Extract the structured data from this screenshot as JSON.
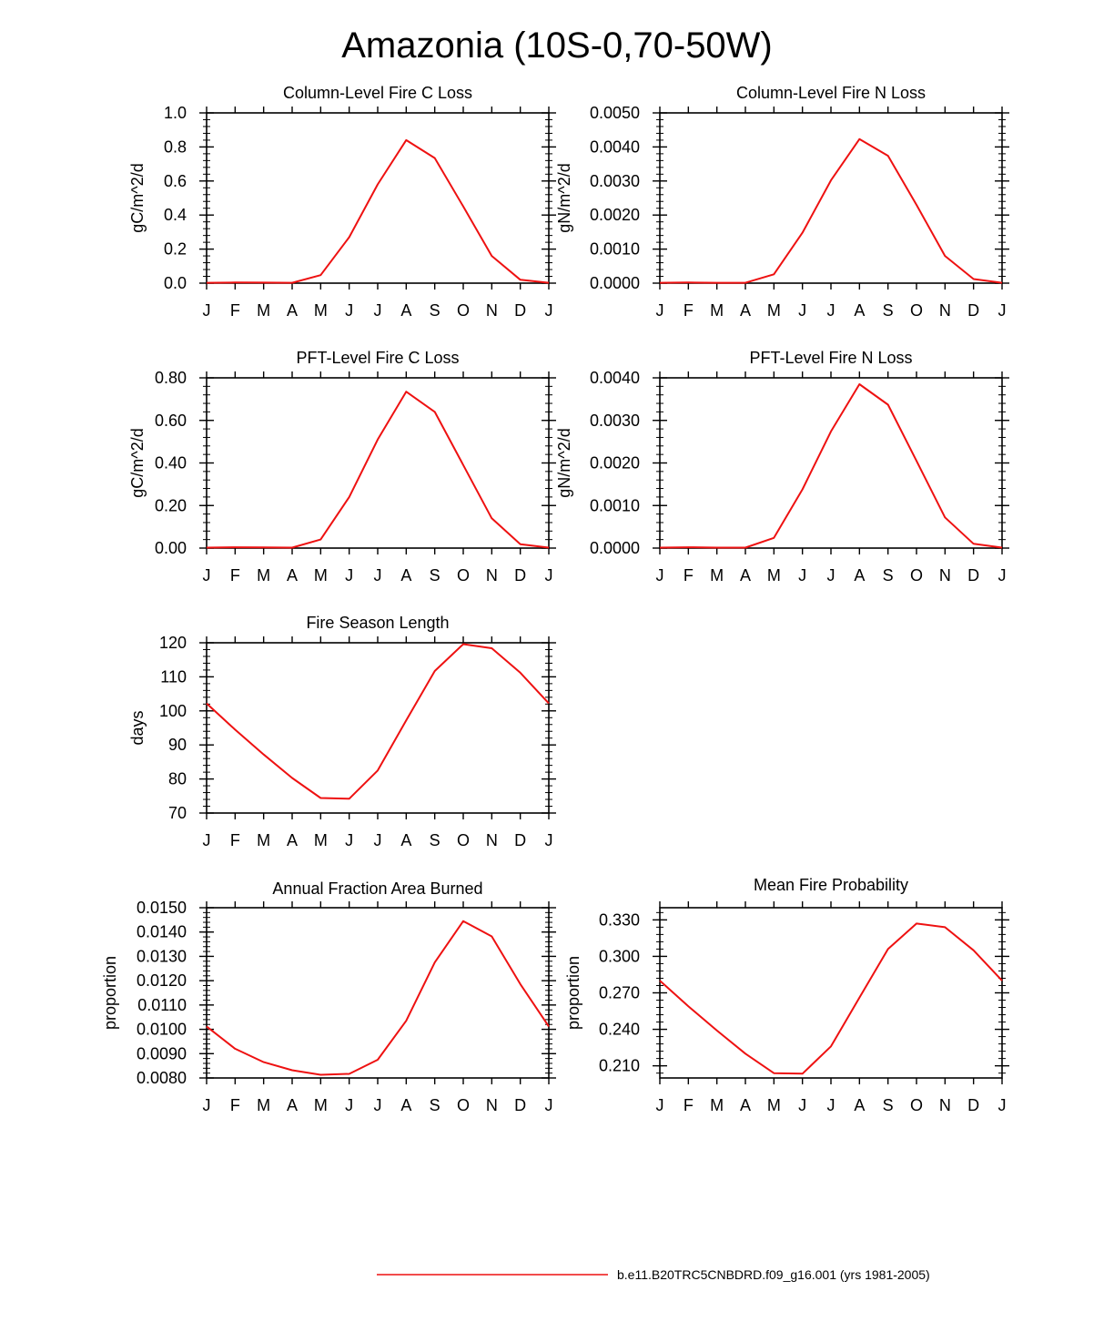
{
  "figure": {
    "title": "Amazonia (10S-0,70-50W)",
    "line_color": "#ee1111",
    "months": [
      "J",
      "F",
      "M",
      "A",
      "M",
      "J",
      "J",
      "A",
      "S",
      "O",
      "N",
      "D",
      "J"
    ],
    "legend": {
      "label": "b.e11.B20TRC5CNBDRD.f09_g16.001 (yrs 1981-2005)"
    }
  },
  "chart_data": [
    {
      "type": "line",
      "title": "Column-Level Fire C Loss",
      "ylabel": "gC/m^2/d",
      "ylim": [
        0,
        1.0
      ],
      "yticks": [
        "0.0",
        "0.2",
        "0.4",
        "0.6",
        "0.8",
        "1.0"
      ],
      "categories": [
        "J",
        "F",
        "M",
        "A",
        "M",
        "J",
        "J",
        "A",
        "S",
        "O",
        "N",
        "D",
        "J"
      ],
      "values": [
        0.002,
        0.004,
        0.003,
        0.002,
        0.047,
        0.27,
        0.58,
        0.84,
        0.735,
        0.45,
        0.16,
        0.02,
        0.002
      ]
    },
    {
      "type": "line",
      "title": "Column-Level Fire N Loss",
      "ylabel": "gN/m^2/d",
      "ylim": [
        0,
        0.005
      ],
      "yticks": [
        "0.0000",
        "0.0010",
        "0.0020",
        "0.0030",
        "0.0040",
        "0.0050"
      ],
      "categories": [
        "J",
        "F",
        "M",
        "A",
        "M",
        "J",
        "J",
        "A",
        "S",
        "O",
        "N",
        "D",
        "J"
      ],
      "values": [
        1e-05,
        2e-05,
        1e-05,
        1e-05,
        0.00026,
        0.00148,
        0.00302,
        0.00423,
        0.00374,
        0.0023,
        0.0008,
        0.00012,
        1e-05
      ]
    },
    {
      "type": "line",
      "title": "PFT-Level Fire C Loss",
      "ylabel": "gC/m^2/d",
      "ylim": [
        0,
        0.8
      ],
      "yticks": [
        "0.00",
        "0.20",
        "0.40",
        "0.60",
        "0.80"
      ],
      "categories": [
        "J",
        "F",
        "M",
        "A",
        "M",
        "J",
        "J",
        "A",
        "S",
        "O",
        "N",
        "D",
        "J"
      ],
      "values": [
        0.002,
        0.004,
        0.003,
        0.002,
        0.04,
        0.24,
        0.51,
        0.735,
        0.64,
        0.39,
        0.14,
        0.018,
        0.002
      ]
    },
    {
      "type": "line",
      "title": "PFT-Level Fire N Loss",
      "ylabel": "gN/m^2/d",
      "ylim": [
        0,
        0.004
      ],
      "yticks": [
        "0.0000",
        "0.0010",
        "0.0020",
        "0.0030",
        "0.0040"
      ],
      "categories": [
        "J",
        "F",
        "M",
        "A",
        "M",
        "J",
        "J",
        "A",
        "S",
        "O",
        "N",
        "D",
        "J"
      ],
      "values": [
        1e-05,
        2e-05,
        1e-05,
        1e-05,
        0.00024,
        0.00138,
        0.00274,
        0.00385,
        0.00337,
        0.00205,
        0.00072,
        0.0001,
        1e-05
      ]
    },
    {
      "type": "line",
      "title": "Fire Season Length",
      "ylabel": "days",
      "ylim": [
        70,
        120
      ],
      "yticks": [
        "70",
        "80",
        "90",
        "100",
        "110",
        "120"
      ],
      "categories": [
        "J",
        "F",
        "M",
        "A",
        "M",
        "J",
        "J",
        "A",
        "S",
        "O",
        "N",
        "D",
        "J"
      ],
      "values": [
        102.2,
        94.5,
        87.2,
        80.3,
        74.4,
        74.2,
        82.5,
        97.2,
        111.7,
        119.6,
        118.4,
        111.2,
        102.2
      ]
    },
    {
      "type": "line",
      "title": "Annual Fraction Area Burned",
      "ylabel": "proportion",
      "ylim": [
        0.008,
        0.015
      ],
      "yticks": [
        "0.0080",
        "0.0090",
        "0.0100",
        "0.0110",
        "0.0120",
        "0.0130",
        "0.0140",
        "0.0150"
      ],
      "categories": [
        "J",
        "F",
        "M",
        "A",
        "M",
        "J",
        "J",
        "A",
        "S",
        "O",
        "N",
        "D",
        "J"
      ],
      "values": [
        0.01012,
        0.0092,
        0.00865,
        0.00832,
        0.00813,
        0.00817,
        0.00875,
        0.01035,
        0.01275,
        0.01445,
        0.01382,
        0.01186,
        0.01012
      ]
    },
    {
      "type": "line",
      "title": "Mean Fire Probability",
      "ylabel": "proportion",
      "ylim": [
        0.2,
        0.34
      ],
      "yticks": [
        "0.210",
        "0.240",
        "0.270",
        "0.300",
        "0.330"
      ],
      "categories": [
        "J",
        "F",
        "M",
        "A",
        "M",
        "J",
        "J",
        "A",
        "S",
        "O",
        "N",
        "D",
        "J"
      ],
      "values": [
        0.28,
        0.259,
        0.239,
        0.22,
        0.204,
        0.2035,
        0.226,
        0.266,
        0.306,
        0.327,
        0.324,
        0.305,
        0.28
      ]
    }
  ]
}
